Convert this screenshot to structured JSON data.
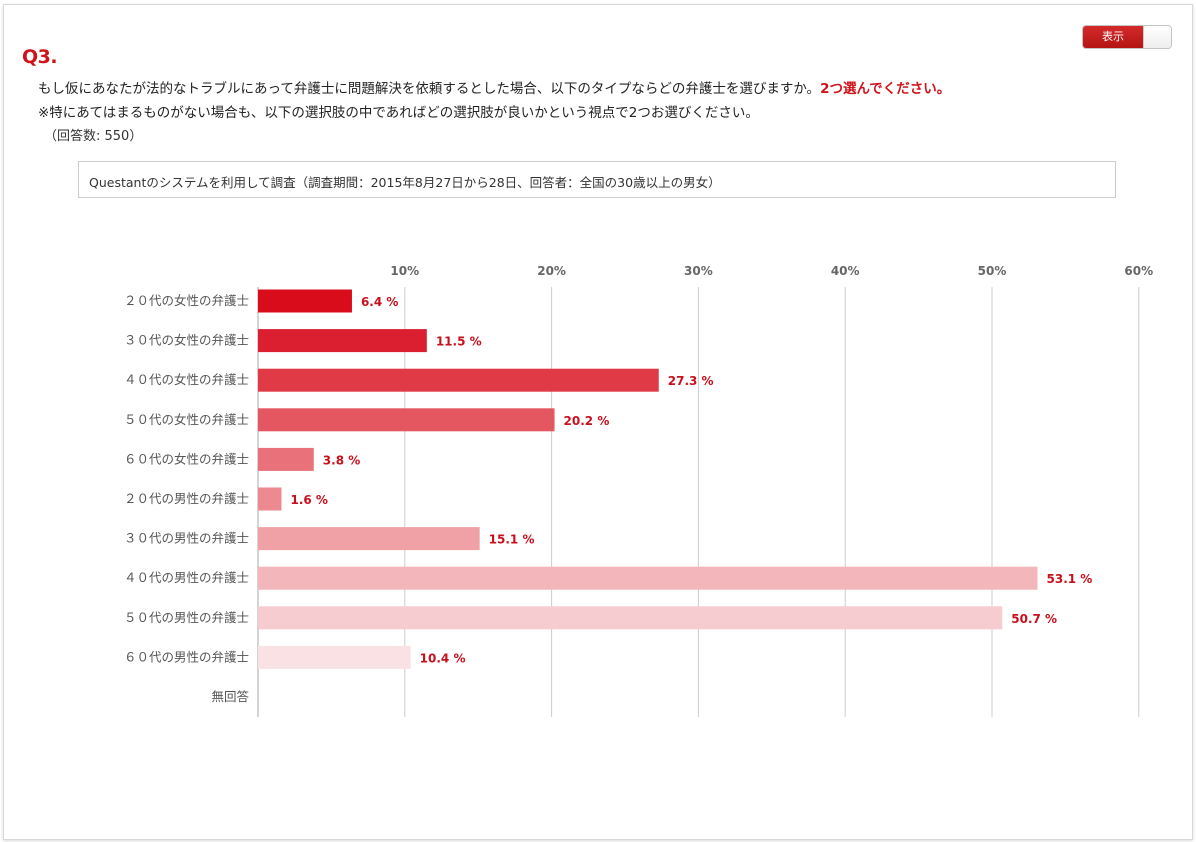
{
  "question": {
    "number": "Q3.",
    "text": "もし仮にあなたが法的なトラブルにあって弁護士に問題解決を依頼するとした場合、以下のタイプならどの弁護士を選びますか。",
    "emphasis": "2つ選んでください。",
    "note": "※特にあてはまるものがない場合も、以下の選択肢の中であればどの選択肢が良いかという視点で2つお選びください。",
    "respondents": "（回答数: 550）"
  },
  "survey_note": "Questantのシステムを利用して調査（調査期間：2015年8月27日から28日、回答者：全国の30歳以上の男女）",
  "toggle": {
    "label": "表示"
  },
  "chart_data": {
    "type": "bar",
    "orientation": "horizontal",
    "categories": [
      "２０代の女性の弁護士",
      "３０代の女性の弁護士",
      "４０代の女性の弁護士",
      "５０代の女性の弁護士",
      "６０代の女性の弁護士",
      "２０代の男性の弁護士",
      "３０代の男性の弁護士",
      "４０代の男性の弁護士",
      "５０代の男性の弁護士",
      "６０代の男性の弁護士",
      "無回答"
    ],
    "values": [
      6.4,
      11.5,
      27.3,
      20.2,
      3.8,
      1.6,
      15.1,
      53.1,
      50.7,
      10.4,
      0
    ],
    "value_labels": [
      "6.4 %",
      "11.5 %",
      "27.3 %",
      "20.2 %",
      "3.8 %",
      "1.6 %",
      "15.1 %",
      "53.1 %",
      "50.7 %",
      "10.4 %",
      ""
    ],
    "xticks": [
      "10%",
      "20%",
      "30%",
      "40%",
      "50%",
      "60%"
    ],
    "xlim": [
      0,
      60
    ],
    "grid": true,
    "colors": [
      "#d90c1b",
      "#dc1f30",
      "#e03a47",
      "#e45761",
      "#e9717a",
      "#ec8991",
      "#f0a1a6",
      "#f3b6ba",
      "#f6ccd0",
      "#fae2e4",
      "#fae2e4"
    ],
    "label_color": "#c8101c"
  }
}
